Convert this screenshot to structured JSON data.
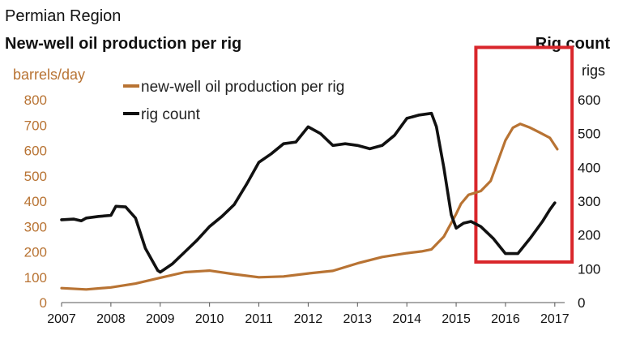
{
  "chart_data": {
    "type": "line",
    "subtitle": "Permian Region",
    "title": "New-well oil production per rig",
    "secondary_title": "Rig count",
    "ylabel": "barrels/day",
    "y2label": "rigs",
    "xlim": [
      2007,
      2017.2
    ],
    "ylim": [
      0,
      800
    ],
    "y2lim": [
      0,
      600
    ],
    "x_ticks": [
      "2007",
      "2008",
      "2009",
      "2010",
      "2011",
      "2012",
      "2013",
      "2014",
      "2015",
      "2016",
      "2017"
    ],
    "y_ticks": [
      "0",
      "100",
      "200",
      "300",
      "400",
      "500",
      "600",
      "700",
      "800"
    ],
    "y2_ticks": [
      "0",
      "100",
      "200",
      "300",
      "400",
      "500",
      "600"
    ],
    "legend_placement": "top-left",
    "highlight_box": {
      "x_range": [
        2015.4,
        2017.35
      ],
      "y_range": [
        120,
        755
      ]
    },
    "series": [
      {
        "name": "new-well oil production per rig",
        "axis": "left",
        "color": "#b87333",
        "x": [
          2007.0,
          2007.5,
          2008.0,
          2008.5,
          2009.0,
          2009.5,
          2010.0,
          2010.5,
          2011.0,
          2011.5,
          2012.0,
          2012.5,
          2013.0,
          2013.5,
          2014.0,
          2014.3,
          2014.5,
          2014.75,
          2015.0,
          2015.1,
          2015.25,
          2015.5,
          2015.7,
          2015.85,
          2016.0,
          2016.15,
          2016.3,
          2016.5,
          2016.7,
          2016.9,
          2017.05
        ],
        "y": [
          57,
          52,
          60,
          75,
          98,
          120,
          126,
          112,
          100,
          103,
          115,
          125,
          155,
          180,
          195,
          202,
          210,
          260,
          350,
          390,
          425,
          440,
          480,
          560,
          640,
          690,
          705,
          690,
          670,
          650,
          605
        ]
      },
      {
        "name": "rig count",
        "axis": "right",
        "color": "#111111",
        "x": [
          2007.0,
          2007.25,
          2007.4,
          2007.5,
          2007.75,
          2008.0,
          2008.1,
          2008.3,
          2008.5,
          2008.7,
          2008.95,
          2009.0,
          2009.25,
          2009.5,
          2009.75,
          2010.0,
          2010.25,
          2010.5,
          2010.75,
          2011.0,
          2011.25,
          2011.5,
          2011.75,
          2012.0,
          2012.25,
          2012.5,
          2012.75,
          2013.0,
          2013.25,
          2013.5,
          2013.75,
          2014.0,
          2014.25,
          2014.5,
          2014.6,
          2014.75,
          2014.9,
          2015.0,
          2015.15,
          2015.3,
          2015.5,
          2015.75,
          2016.0,
          2016.25,
          2016.5,
          2016.75,
          2016.9,
          2017.0
        ],
        "y": [
          245,
          247,
          242,
          250,
          255,
          258,
          285,
          283,
          250,
          160,
          95,
          90,
          115,
          150,
          185,
          225,
          255,
          290,
          350,
          415,
          440,
          470,
          475,
          520,
          500,
          465,
          470,
          465,
          455,
          465,
          495,
          545,
          555,
          560,
          520,
          400,
          260,
          220,
          235,
          240,
          225,
          190,
          145,
          145,
          190,
          240,
          275,
          295
        ]
      }
    ]
  }
}
